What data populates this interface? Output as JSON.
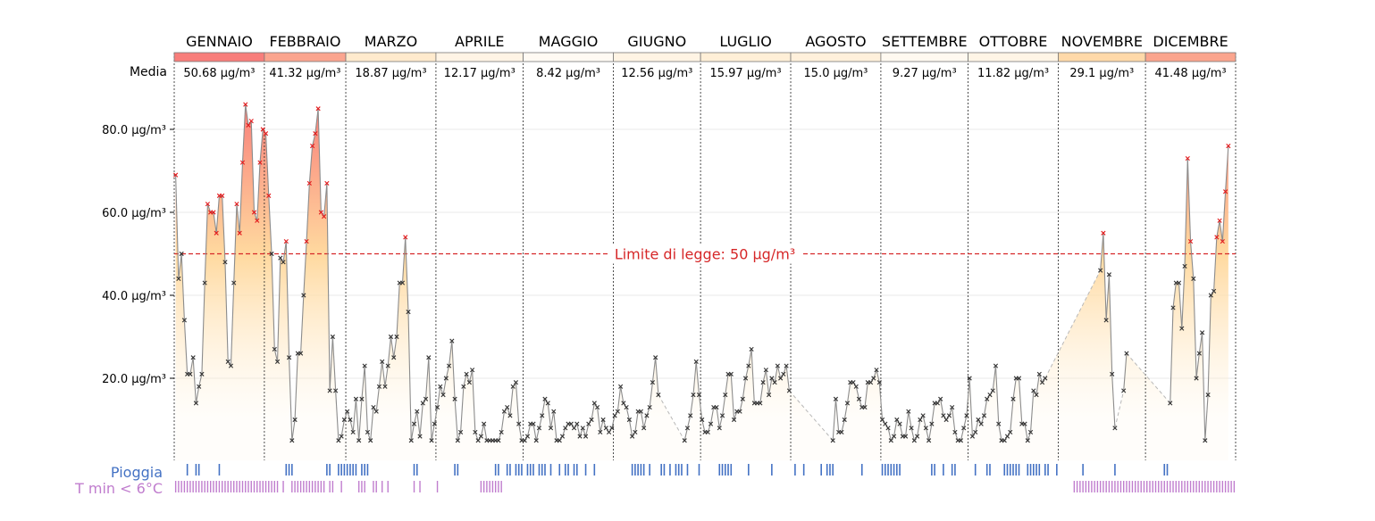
{
  "chart_data": {
    "type": "line",
    "y_tick_labels": [
      "20.0 µg/m³",
      "40.0 µg/m³",
      "60.0 µg/m³",
      "80.0 µg/m³"
    ],
    "y_ticks": [
      20,
      40,
      60,
      80
    ],
    "ylim": [
      0,
      94
    ],
    "grid": "horizontal",
    "threshold": {
      "value": 50,
      "label": "Limite di legge: 50 µg/m³",
      "color": "#d62728"
    },
    "media_label": "Media",
    "months": [
      {
        "name": "GENNAIO",
        "mean": 50.68,
        "mean_label": "50.68 µg/m³"
      },
      {
        "name": "FEBBRAIO",
        "mean": 41.32,
        "mean_label": "41.32 µg/m³"
      },
      {
        "name": "MARZO",
        "mean": 18.87,
        "mean_label": "18.87 µg/m³"
      },
      {
        "name": "APRILE",
        "mean": 12.17,
        "mean_label": "12.17 µg/m³"
      },
      {
        "name": "MAGGIO",
        "mean": 8.42,
        "mean_label": "8.42 µg/m³"
      },
      {
        "name": "GIUGNO",
        "mean": 12.56,
        "mean_label": "12.56 µg/m³"
      },
      {
        "name": "LUGLIO",
        "mean": 15.97,
        "mean_label": "15.97 µg/m³"
      },
      {
        "name": "AGOSTO",
        "mean": 15.0,
        "mean_label": "15.0 µg/m³"
      },
      {
        "name": "SETTEMBRE",
        "mean": 9.27,
        "mean_label": "9.27 µg/m³"
      },
      {
        "name": "OTTOBRE",
        "mean": 11.82,
        "mean_label": "11.82 µg/m³"
      },
      {
        "name": "NOVEMBRE",
        "mean": 29.1,
        "mean_label": "29.1 µg/m³"
      },
      {
        "name": "DICEMBRE",
        "mean": 41.48,
        "mean_label": "41.48 µg/m³"
      }
    ],
    "series": [
      {
        "segments": [
          {
            "start": "01-01",
            "values": [
              69,
              44,
              50,
              34,
              21,
              21,
              25,
              14,
              18,
              21,
              43,
              62,
              60,
              60,
              55,
              64,
              64,
              48,
              24,
              23,
              43,
              62,
              55,
              72,
              86,
              81,
              82,
              60,
              58,
              72,
              80,
              79,
              64,
              50,
              27,
              24,
              49,
              48,
              53,
              25,
              5,
              10,
              26,
              26,
              40,
              53,
              67,
              76,
              79,
              85,
              60,
              59,
              67,
              17,
              30,
              17,
              5,
              6,
              10
            ]
          },
          {
            "start": "03-01",
            "values": [
              12,
              10,
              7,
              15,
              5,
              15,
              23,
              7,
              5,
              13,
              12,
              18,
              24,
              18,
              23,
              30,
              25,
              30,
              43,
              43,
              54,
              36,
              5,
              9,
              12,
              6,
              14,
              15,
              25,
              5,
              9,
              13,
              18,
              16,
              20,
              23,
              29,
              15,
              5,
              7,
              18,
              21,
              19,
              22,
              7,
              5,
              6,
              9,
              5,
              5,
              5,
              5,
              5,
              7,
              12,
              13,
              11,
              18,
              19,
              9,
              5,
              5,
              6,
              9,
              9,
              5,
              8,
              11,
              15,
              14,
              8,
              12,
              5,
              5,
              6,
              8,
              9,
              9,
              8,
              9,
              6,
              8,
              6,
              9,
              10,
              14,
              13,
              7,
              10,
              8,
              7,
              8,
              11,
              12,
              18,
              14,
              13,
              10,
              6,
              7,
              12,
              12,
              8,
              11,
              13,
              19,
              25,
              16
            ]
          },
          {
            "start": "06-25",
            "values": [
              5,
              8,
              11,
              16,
              24,
              16,
              10,
              7,
              7,
              9,
              13,
              13,
              8,
              11,
              16,
              21,
              21,
              10,
              12,
              12,
              15,
              20,
              23,
              27,
              14,
              14,
              14,
              19,
              22,
              16,
              20,
              19,
              23,
              20,
              21,
              23,
              17
            ]
          },
          {
            "start": "08-15",
            "values": [
              5,
              15,
              7,
              7,
              10,
              14,
              19,
              19,
              18,
              15,
              13,
              13,
              19,
              19,
              20,
              22,
              19,
              10,
              9,
              8,
              5,
              6,
              10,
              9,
              6,
              6,
              12,
              8,
              5,
              6,
              10,
              11,
              8,
              5,
              9,
              14,
              14,
              15,
              11,
              10,
              11,
              13,
              7,
              5,
              5,
              8,
              11,
              20,
              6,
              7,
              10,
              9,
              11,
              15,
              16,
              17,
              23,
              9,
              5,
              5,
              6,
              7,
              15,
              20,
              20,
              9,
              9,
              5,
              7,
              17,
              16,
              21,
              19,
              20
            ]
          },
          {
            "start": "11-15",
            "values": [
              46,
              55,
              34,
              45,
              21,
              8
            ]
          },
          {
            "start": "11-23",
            "values": [
              17,
              26
            ]
          },
          {
            "start": "12-09",
            "values": [
              14,
              37,
              43,
              43,
              32,
              47,
              73,
              53,
              44,
              20,
              26,
              31,
              5,
              16,
              40,
              41,
              54,
              58,
              53,
              65,
              76
            ]
          }
        ]
      }
    ],
    "rain_label": "Pioggia",
    "rain_color": "#4472c4",
    "rain_days": [
      "01-05",
      "01-08",
      "01-09",
      "01-16",
      "02-08",
      "02-09",
      "02-10",
      "02-22",
      "02-23",
      "02-26",
      "02-27",
      "02-28",
      "03-01",
      "03-02",
      "03-03",
      "03-04",
      "03-06",
      "03-07",
      "03-08",
      "03-24",
      "03-25",
      "04-07",
      "04-08",
      "04-21",
      "04-22",
      "04-25",
      "04-26",
      "04-28",
      "04-29",
      "04-30",
      "05-02",
      "05-03",
      "05-04",
      "05-06",
      "05-07",
      "05-08",
      "05-10",
      "05-13",
      "05-15",
      "05-16",
      "05-18",
      "05-19",
      "05-22",
      "05-25",
      "06-07",
      "06-08",
      "06-09",
      "06-10",
      "06-11",
      "06-13",
      "06-17",
      "06-18",
      "06-20",
      "06-22",
      "06-23",
      "06-24",
      "06-26",
      "06-30",
      "07-07",
      "07-08",
      "07-09",
      "07-10",
      "07-11",
      "07-17",
      "07-25",
      "08-02",
      "08-05",
      "08-11",
      "08-13",
      "08-14",
      "08-15",
      "08-25",
      "09-01",
      "09-02",
      "09-03",
      "09-04",
      "09-05",
      "09-06",
      "09-07",
      "09-18",
      "09-19",
      "09-22",
      "09-25",
      "09-26",
      "10-03",
      "10-07",
      "10-08",
      "10-13",
      "10-14",
      "10-15",
      "10-16",
      "10-17",
      "10-18",
      "10-21",
      "10-22",
      "10-23",
      "10-24",
      "10-25",
      "10-27",
      "10-28",
      "10-31",
      "11-09",
      "11-20",
      "12-07",
      "12-08"
    ],
    "cold_label": "T min < 6°C",
    "cold_color": "#c07dce",
    "cold_days": [
      "01-01",
      "01-02",
      "01-03",
      "01-04",
      "01-05",
      "01-06",
      "01-07",
      "01-08",
      "01-09",
      "01-10",
      "01-11",
      "01-12",
      "01-13",
      "01-14",
      "01-15",
      "01-16",
      "01-17",
      "01-18",
      "01-19",
      "01-20",
      "01-21",
      "01-22",
      "01-23",
      "01-24",
      "01-25",
      "01-26",
      "01-27",
      "01-28",
      "01-29",
      "01-30",
      "01-31",
      "02-01",
      "02-02",
      "02-03",
      "02-04",
      "02-05",
      "02-07",
      "02-10",
      "02-11",
      "02-12",
      "02-13",
      "02-14",
      "02-15",
      "02-16",
      "02-17",
      "02-18",
      "02-19",
      "02-20",
      "02-21",
      "02-23",
      "02-24",
      "02-27",
      "03-05",
      "03-06",
      "03-07",
      "03-10",
      "03-11",
      "03-13",
      "03-15",
      "03-24",
      "03-26",
      "04-01",
      "04-16",
      "04-17",
      "04-18",
      "04-19",
      "04-20",
      "04-21",
      "04-22",
      "04-23",
      "11-06",
      "11-07",
      "11-08",
      "11-09",
      "11-10",
      "11-11",
      "11-12",
      "11-13",
      "11-14",
      "11-15",
      "11-16",
      "11-17",
      "11-18",
      "11-19",
      "11-20",
      "11-21",
      "11-22",
      "11-23",
      "11-24",
      "11-25",
      "11-26",
      "11-27",
      "11-28",
      "11-29",
      "11-30",
      "12-01",
      "12-02",
      "12-03",
      "12-04",
      "12-05",
      "12-06",
      "12-07",
      "12-08",
      "12-09",
      "12-10",
      "12-11",
      "12-12",
      "12-13",
      "12-14",
      "12-15",
      "12-16",
      "12-17",
      "12-18",
      "12-19",
      "12-20",
      "12-21",
      "12-22",
      "12-23",
      "12-24",
      "12-25",
      "12-26",
      "12-27",
      "12-28",
      "12-29",
      "12-30",
      "12-31"
    ]
  }
}
